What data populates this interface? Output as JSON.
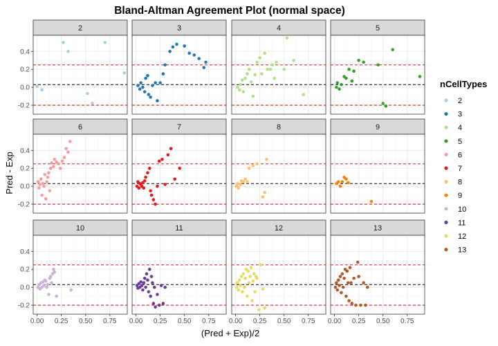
{
  "chart_data": {
    "type": "scatter",
    "title": "Bland-Altman Agreement Plot (normal space)",
    "xlabel": "(Pred + Exp)/2",
    "ylabel": "Pred - Exp",
    "legend_title": "nCellTypes",
    "legend_position": "right",
    "grid": true,
    "xlim": [
      -0.04,
      0.93
    ],
    "ylim": [
      -0.3,
      0.58
    ],
    "x_ticks": [
      "0.00",
      "0.25",
      "0.50",
      "0.75"
    ],
    "y_ticks": [
      "-0.2",
      "0.0",
      "0.2",
      "0.4"
    ],
    "mean_line": 0.03,
    "loa_upper": 0.25,
    "loa_lower": -0.2,
    "mean_line_color": "#000000",
    "loa_line_color": "#e31a1c",
    "panels": [
      {
        "label": "2",
        "color": "#a6cee3",
        "points": [
          [
            0.0,
            0.01
          ],
          [
            0.05,
            -0.03
          ],
          [
            0.27,
            0.5
          ],
          [
            0.32,
            0.4
          ],
          [
            0.52,
            -0.07
          ],
          [
            0.57,
            -0.18
          ],
          [
            0.7,
            0.5
          ],
          [
            0.9,
            0.16
          ]
        ]
      },
      {
        "label": "3",
        "color": "#1f78b4",
        "points": [
          [
            0.02,
            0.02
          ],
          [
            0.04,
            -0.02
          ],
          [
            0.05,
            0.05
          ],
          [
            0.07,
            0.0
          ],
          [
            0.09,
            -0.05
          ],
          [
            0.1,
            0.1
          ],
          [
            0.12,
            0.13
          ],
          [
            0.13,
            -0.08
          ],
          [
            0.15,
            -0.11
          ],
          [
            0.17,
            0.02
          ],
          [
            0.2,
            0.05
          ],
          [
            0.22,
            -0.15
          ],
          [
            0.25,
            0.05
          ],
          [
            0.28,
            0.15
          ],
          [
            0.3,
            0.25
          ],
          [
            0.35,
            0.4
          ],
          [
            0.38,
            0.45
          ],
          [
            0.42,
            0.48
          ],
          [
            0.5,
            0.46
          ],
          [
            0.55,
            0.38
          ],
          [
            0.6,
            0.36
          ],
          [
            0.65,
            0.32
          ],
          [
            0.7,
            0.22
          ],
          [
            0.72,
            0.28
          ]
        ]
      },
      {
        "label": "4",
        "color": "#b2df8a",
        "points": [
          [
            0.02,
            0.0
          ],
          [
            0.04,
            -0.03
          ],
          [
            0.05,
            0.03
          ],
          [
            0.07,
            0.08
          ],
          [
            0.08,
            -0.05
          ],
          [
            0.1,
            0.1
          ],
          [
            0.12,
            0.15
          ],
          [
            0.14,
            0.2
          ],
          [
            0.16,
            0.06
          ],
          [
            0.18,
            -0.1
          ],
          [
            0.2,
            0.14
          ],
          [
            0.22,
            0.28
          ],
          [
            0.25,
            0.33
          ],
          [
            0.27,
            0.15
          ],
          [
            0.3,
            0.38
          ],
          [
            0.33,
            0.2
          ],
          [
            0.36,
            0.2
          ],
          [
            0.38,
            0.25
          ],
          [
            0.4,
            0.1
          ],
          [
            0.42,
            0.28
          ],
          [
            0.5,
            0.2
          ],
          [
            0.53,
            0.55
          ],
          [
            0.6,
            0.3
          ],
          [
            0.7,
            -0.08
          ]
        ]
      },
      {
        "label": "5",
        "color": "#33a02c",
        "points": [
          [
            0.02,
            0.0
          ],
          [
            0.03,
            0.05
          ],
          [
            0.05,
            -0.02
          ],
          [
            0.07,
            0.03
          ],
          [
            0.1,
            0.12
          ],
          [
            0.12,
            0.1
          ],
          [
            0.15,
            0.2
          ],
          [
            0.18,
            0.07
          ],
          [
            0.2,
            0.18
          ],
          [
            0.25,
            0.3
          ],
          [
            0.3,
            0.28
          ],
          [
            0.45,
            0.25
          ],
          [
            0.5,
            -0.18
          ],
          [
            0.53,
            -0.21
          ],
          [
            0.6,
            0.42
          ],
          [
            0.88,
            0.12
          ]
        ]
      },
      {
        "label": "6",
        "color": "#fb9a99",
        "points": [
          [
            0.01,
            0.05
          ],
          [
            0.02,
            -0.02
          ],
          [
            0.03,
            0.02
          ],
          [
            0.04,
            0.08
          ],
          [
            0.05,
            -0.1
          ],
          [
            0.06,
            0.03
          ],
          [
            0.07,
            0.0
          ],
          [
            0.08,
            0.13
          ],
          [
            0.09,
            -0.14
          ],
          [
            0.1,
            0.05
          ],
          [
            0.11,
            0.1
          ],
          [
            0.12,
            0.15
          ],
          [
            0.13,
            -0.05
          ],
          [
            0.14,
            0.2
          ],
          [
            0.15,
            0.26
          ],
          [
            0.17,
            0.22
          ],
          [
            0.18,
            0.3
          ],
          [
            0.2,
            0.27
          ],
          [
            0.22,
            0.25
          ],
          [
            0.24,
            0.2
          ],
          [
            0.26,
            0.28
          ],
          [
            0.28,
            0.32
          ],
          [
            0.3,
            0.42
          ],
          [
            0.32,
            0.38
          ],
          [
            0.34,
            0.5
          ]
        ]
      },
      {
        "label": "7",
        "color": "#e31a1c",
        "points": [
          [
            0.01,
            0.0
          ],
          [
            0.02,
            0.05
          ],
          [
            0.03,
            -0.02
          ],
          [
            0.04,
            0.03
          ],
          [
            0.05,
            0.02
          ],
          [
            0.06,
            0.0
          ],
          [
            0.07,
            0.04
          ],
          [
            0.08,
            -0.02
          ],
          [
            0.09,
            0.06
          ],
          [
            0.1,
            0.1
          ],
          [
            0.12,
            0.15
          ],
          [
            0.14,
            0.2
          ],
          [
            0.15,
            -0.05
          ],
          [
            0.16,
            -0.1
          ],
          [
            0.18,
            -0.15
          ],
          [
            0.2,
            -0.2
          ],
          [
            0.22,
            0.0
          ],
          [
            0.24,
            0.28
          ],
          [
            0.27,
            0.3
          ],
          [
            0.3,
            0.02
          ],
          [
            0.33,
            0.35
          ],
          [
            0.36,
            0.42
          ],
          [
            0.4,
            0.08
          ],
          [
            0.45,
            0.2
          ]
        ]
      },
      {
        "label": "8",
        "color": "#fdbf6f",
        "points": [
          [
            0.01,
            0.0
          ],
          [
            0.02,
            0.03
          ],
          [
            0.03,
            -0.02
          ],
          [
            0.05,
            0.02
          ],
          [
            0.06,
            0.06
          ],
          [
            0.08,
            0.05
          ],
          [
            0.1,
            0.08
          ],
          [
            0.12,
            0.05
          ],
          [
            0.14,
            0.2
          ],
          [
            0.18,
            0.23
          ],
          [
            0.22,
            0.25
          ],
          [
            0.28,
            -0.12
          ],
          [
            0.3,
            -0.07
          ],
          [
            0.32,
            0.3
          ]
        ]
      },
      {
        "label": "9",
        "color": "#ff7f00",
        "points": [
          [
            0.02,
            0.03
          ],
          [
            0.04,
            0.05
          ],
          [
            0.06,
            0.0
          ],
          [
            0.08,
            0.05
          ],
          [
            0.1,
            0.1
          ],
          [
            0.12,
            0.08
          ],
          [
            0.14,
            0.04
          ],
          [
            0.38,
            -0.17
          ]
        ]
      },
      {
        "label": "10",
        "color": "#cab2d6",
        "points": [
          [
            0.01,
            0.0
          ],
          [
            0.02,
            0.03
          ],
          [
            0.03,
            -0.02
          ],
          [
            0.04,
            0.05
          ],
          [
            0.05,
            0.0
          ],
          [
            0.06,
            0.06
          ],
          [
            0.07,
            0.02
          ],
          [
            0.08,
            0.08
          ],
          [
            0.09,
            0.07
          ],
          [
            0.1,
            0.0
          ],
          [
            0.11,
            0.03
          ],
          [
            0.12,
            -0.08
          ],
          [
            0.13,
            0.1
          ],
          [
            0.14,
            0.12
          ],
          [
            0.15,
            0.05
          ],
          [
            0.16,
            0.15
          ],
          [
            0.17,
            0.2
          ],
          [
            0.18,
            0.17
          ],
          [
            0.2,
            -0.1
          ],
          [
            0.35,
            -0.03
          ]
        ]
      },
      {
        "label": "11",
        "color": "#6a3d9a",
        "points": [
          [
            0.01,
            0.02
          ],
          [
            0.02,
            -0.01
          ],
          [
            0.03,
            0.04
          ],
          [
            0.04,
            0.0
          ],
          [
            0.05,
            0.06
          ],
          [
            0.06,
            0.02
          ],
          [
            0.07,
            -0.03
          ],
          [
            0.08,
            0.05
          ],
          [
            0.09,
            0.1
          ],
          [
            0.1,
            0.0
          ],
          [
            0.11,
            0.15
          ],
          [
            0.12,
            0.08
          ],
          [
            0.13,
            -0.05
          ],
          [
            0.14,
            0.2
          ],
          [
            0.15,
            -0.1
          ],
          [
            0.16,
            0.12
          ],
          [
            0.17,
            0.05
          ],
          [
            0.18,
            -0.18
          ],
          [
            0.19,
            0.0
          ],
          [
            0.2,
            -0.22
          ],
          [
            0.22,
            -0.08
          ],
          [
            0.24,
            -0.2
          ],
          [
            0.26,
            0.02
          ],
          [
            0.28,
            -0.18
          ],
          [
            0.3,
            0.0
          ]
        ]
      },
      {
        "label": "12",
        "color": "#e2dc63",
        "points": [
          [
            0.01,
            0.0
          ],
          [
            0.02,
            0.05
          ],
          [
            0.03,
            -0.03
          ],
          [
            0.04,
            0.08
          ],
          [
            0.05,
            0.02
          ],
          [
            0.06,
            0.12
          ],
          [
            0.07,
            -0.05
          ],
          [
            0.08,
            0.15
          ],
          [
            0.09,
            0.0
          ],
          [
            0.1,
            0.1
          ],
          [
            0.11,
            0.2
          ],
          [
            0.12,
            -0.1
          ],
          [
            0.13,
            0.18
          ],
          [
            0.14,
            0.05
          ],
          [
            0.15,
            0.12
          ],
          [
            0.16,
            0.22
          ],
          [
            0.17,
            -0.15
          ],
          [
            0.18,
            0.07
          ],
          [
            0.19,
            0.15
          ],
          [
            0.2,
            -0.05
          ],
          [
            0.21,
            0.12
          ],
          [
            0.22,
            0.1
          ],
          [
            0.24,
            -0.25
          ],
          [
            0.26,
            0.25
          ],
          [
            0.28,
            -0.02
          ],
          [
            0.3,
            -0.23
          ]
        ]
      },
      {
        "label": "13",
        "color": "#b15928",
        "points": [
          [
            0.01,
            0.0
          ],
          [
            0.02,
            0.05
          ],
          [
            0.03,
            -0.03
          ],
          [
            0.04,
            0.08
          ],
          [
            0.05,
            0.02
          ],
          [
            0.06,
            0.12
          ],
          [
            0.07,
            -0.06
          ],
          [
            0.08,
            0.15
          ],
          [
            0.09,
            0.0
          ],
          [
            0.1,
            0.1
          ],
          [
            0.11,
            0.2
          ],
          [
            0.12,
            -0.1
          ],
          [
            0.13,
            0.18
          ],
          [
            0.14,
            0.05
          ],
          [
            0.15,
            -0.15
          ],
          [
            0.16,
            0.22
          ],
          [
            0.17,
            0.05
          ],
          [
            0.18,
            -0.18
          ],
          [
            0.2,
            0.1
          ],
          [
            0.22,
            -0.2
          ],
          [
            0.24,
            0.28
          ],
          [
            0.25,
            0.12
          ],
          [
            0.27,
            -0.2
          ],
          [
            0.3,
            0.05
          ],
          [
            0.32,
            -0.2
          ],
          [
            0.34,
            0.0
          ]
        ]
      }
    ]
  }
}
